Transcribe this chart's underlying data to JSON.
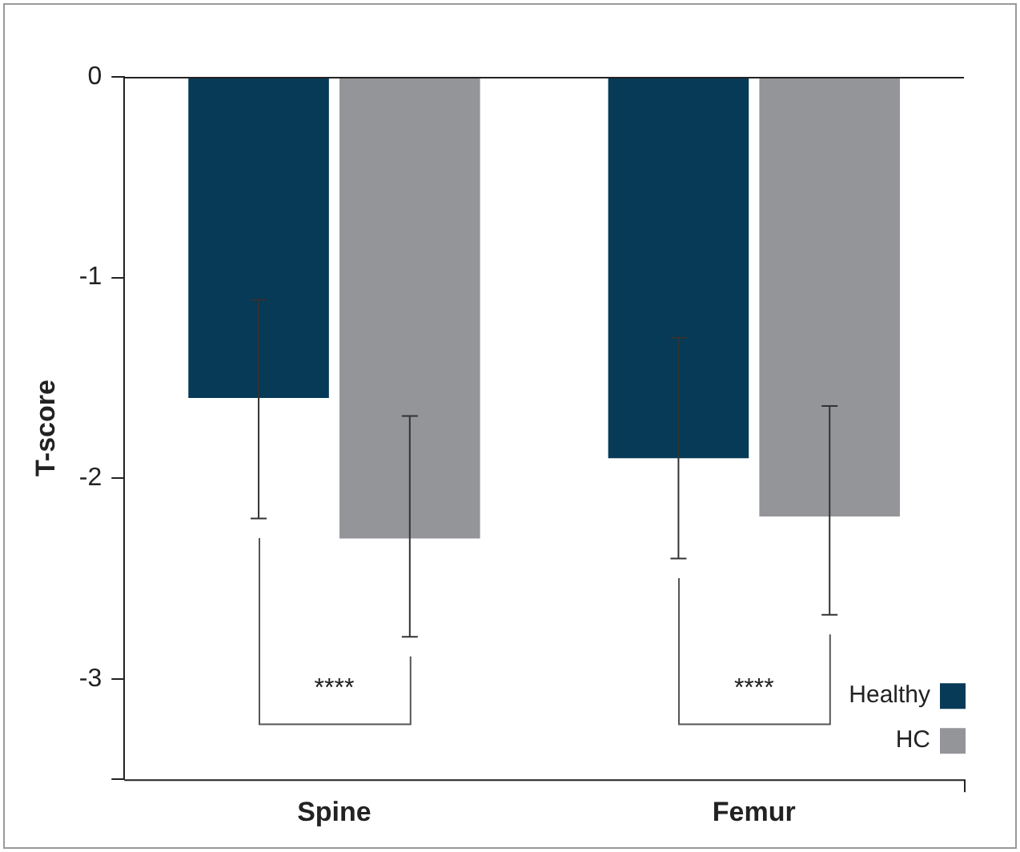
{
  "chart_data": {
    "type": "bar",
    "ylabel": "T-score",
    "categories": [
      "Spine",
      "Femur"
    ],
    "series": [
      {
        "name": "Healthy",
        "color": "#063a56",
        "values": [
          -1.6,
          -1.9
        ],
        "errors": [
          [
            -2.2,
            -1.11
          ],
          [
            -2.4,
            -1.3
          ]
        ]
      },
      {
        "name": "HC",
        "color": "#939598",
        "values": [
          -2.3,
          -2.19
        ],
        "errors": [
          [
            -2.79,
            -1.69
          ],
          [
            -2.68,
            -1.64
          ]
        ]
      }
    ],
    "ylim": [
      -3.5,
      0
    ],
    "yticks": [
      0,
      -1,
      -2,
      -3,
      {
        "value": -3.5,
        "label": null
      }
    ],
    "grid": false,
    "legend": "bottom right",
    "annotations": [
      "****",
      "****"
    ]
  }
}
